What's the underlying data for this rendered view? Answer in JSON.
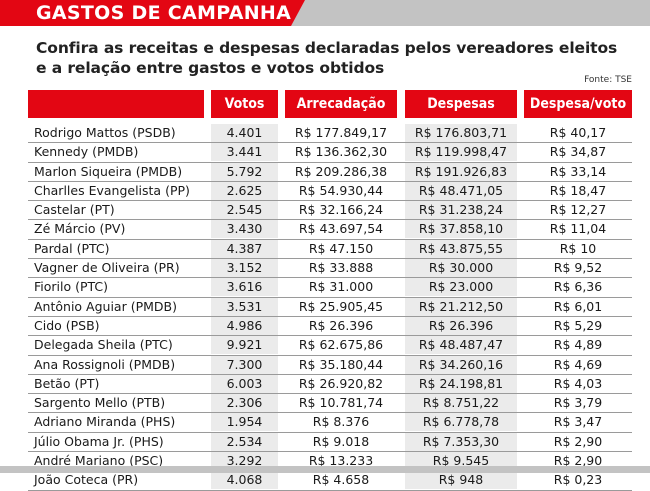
{
  "header": {
    "title": "GASTOS DE CAMPANHA",
    "subtitle": "Confira as receitas e despesas declaradas pelos vereadores eleitos e a relação entre gastos e votos obtidos",
    "source": "Fonte: TSE"
  },
  "table": {
    "columns": [
      "",
      "Votos",
      "Arrecadação",
      "Despesas",
      "Despesa/voto"
    ],
    "rows": [
      {
        "name": "Rodrigo Mattos (PSDB)",
        "votos": "4.401",
        "arrecadacao": "R$ 177.849,17",
        "despesas": "R$ 176.803,71",
        "despesa_voto": "R$ 40,17"
      },
      {
        "name": "Kennedy (PMDB)",
        "votos": "3.441",
        "arrecadacao": "R$ 136.362,30",
        "despesas": "R$ 119.998,47",
        "despesa_voto": "R$ 34,87"
      },
      {
        "name": "Marlon Siqueira  (PMDB)",
        "votos": "5.792",
        "arrecadacao": "R$ 209.286,38",
        "despesas": "R$ 191.926,83",
        "despesa_voto": "R$ 33,14"
      },
      {
        "name": "Charlles Evangelista (PP)",
        "votos": "2.625",
        "arrecadacao": "R$ 54.930,44",
        "despesas": "R$ 48.471,05",
        "despesa_voto": "R$ 18,47"
      },
      {
        "name": "Castelar (PT)",
        "votos": "2.545",
        "arrecadacao": "R$ 32.166,24",
        "despesas": "R$ 31.238,24",
        "despesa_voto": "R$ 12,27"
      },
      {
        "name": "Zé Márcio (PV)",
        "votos": "3.430",
        "arrecadacao": "R$ 43.697,54",
        "despesas": "R$ 37.858,10",
        "despesa_voto": "R$ 11,04"
      },
      {
        "name": "Pardal (PTC)",
        "votos": "4.387",
        "arrecadacao": "R$ 47.150",
        "despesas": "R$ 43.875,55",
        "despesa_voto": "R$ 10"
      },
      {
        "name": "Vagner  de Oliveira (PR)",
        "votos": "3.152",
        "arrecadacao": "R$ 33.888",
        "despesas": "R$ 30.000",
        "despesa_voto": "R$ 9,52"
      },
      {
        "name": "Fiorilo (PTC)",
        "votos": "3.616",
        "arrecadacao": "R$ 31.000",
        "despesas": "R$ 23.000",
        "despesa_voto": "R$ 6,36"
      },
      {
        "name": "Antônio Aguiar (PMDB)",
        "votos": "3.531",
        "arrecadacao": "R$ 25.905,45",
        "despesas": "R$ 21.212,50",
        "despesa_voto": "R$ 6,01"
      },
      {
        "name": "Cido (PSB)",
        "votos": "4.986",
        "arrecadacao": "R$ 26.396",
        "despesas": "R$ 26.396",
        "despesa_voto": "R$ 5,29"
      },
      {
        "name": "Delegada Sheila (PTC)",
        "votos": "9.921",
        "arrecadacao": "R$ 62.675,86",
        "despesas": "R$ 48.487,47",
        "despesa_voto": "R$ 4,89"
      },
      {
        "name": "Ana Rossignoli (PMDB)",
        "votos": "7.300",
        "arrecadacao": "R$ 35.180,44",
        "despesas": "R$ 34.260,16",
        "despesa_voto": "R$ 4,69"
      },
      {
        "name": "Betão (PT)",
        "votos": "6.003",
        "arrecadacao": "R$ 26.920,82",
        "despesas": "R$ 24.198,81",
        "despesa_voto": "R$ 4,03"
      },
      {
        "name": "Sargento Mello (PTB)",
        "votos": "2.306",
        "arrecadacao": "R$ 10.781,74",
        "despesas": "R$ 8.751,22",
        "despesa_voto": "R$ 3,79"
      },
      {
        "name": "Adriano Miranda (PHS)",
        "votos": "1.954",
        "arrecadacao": "R$ 8.376",
        "despesas": "R$ 6.778,78",
        "despesa_voto": "R$ 3,47"
      },
      {
        "name": "Júlio Obama Jr. (PHS)",
        "votos": "2.534",
        "arrecadacao": "R$ 9.018",
        "despesas": "R$ 7.353,30",
        "despesa_voto": "R$ 2,90"
      },
      {
        "name": "André Mariano (PSC)",
        "votos": "3.292",
        "arrecadacao": "R$ 13.233",
        "despesas": "R$ 9.545",
        "despesa_voto": "R$ 2,90"
      },
      {
        "name": "João Coteca (PR)",
        "votos": "4.068",
        "arrecadacao": "R$ 4.658",
        "despesas": "R$ 948",
        "despesa_voto": "R$ 0,23"
      }
    ]
  },
  "colors": {
    "accent": "#e30613",
    "bar_gray": "#c3c3c3",
    "cell_shade": "#ebebeb"
  }
}
